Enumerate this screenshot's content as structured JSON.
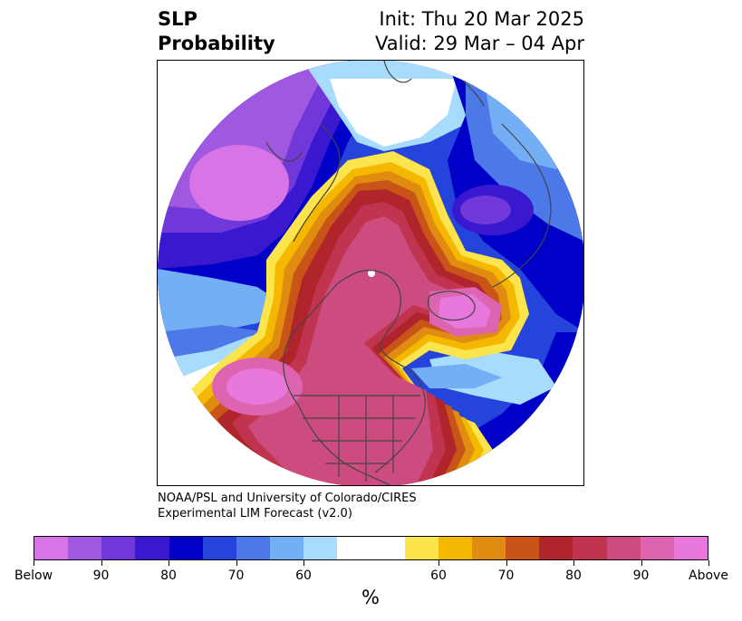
{
  "title": {
    "left_line1": "SLP",
    "left_line2": "Probability",
    "right_line1": "Init: Thu 20 Mar 2025",
    "right_line2": "Valid: 29 Mar – 04 Apr"
  },
  "credit": {
    "line1": "NOAA/PSL and University of Colorado/CIRES",
    "line2": "Experimental LIM Forecast (v2.0)"
  },
  "map": {
    "projection": "north-polar-stereographic",
    "region": "Northern Hemisphere",
    "features": [
      "coastlines",
      "country-borders",
      "us-state-borders"
    ]
  },
  "colorbar": {
    "units": "%",
    "colors_below": [
      "#d674e8",
      "#a058e0",
      "#7038d8",
      "#3a18d0",
      "#0000c8",
      "#2444dc",
      "#4c78e8",
      "#74aef4",
      "#a8dcfc"
    ],
    "color_neutral": "#ffffff",
    "colors_above": [
      "#fce44c",
      "#f4b800",
      "#e08c10",
      "#c85418",
      "#b0242c",
      "#c03450",
      "#cc4c80",
      "#dc64b0",
      "#e878dc"
    ],
    "tick_labels": [
      "Below",
      "90",
      "80",
      "70",
      "60",
      "60",
      "70",
      "80",
      "90",
      "Above"
    ]
  }
}
